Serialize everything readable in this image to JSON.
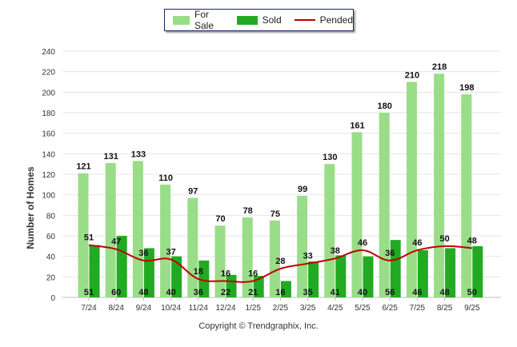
{
  "chart_data": {
    "type": "bar",
    "categories": [
      "7/24",
      "8/24",
      "9/24",
      "10/24",
      "11/24",
      "12/24",
      "1/25",
      "2/25",
      "3/25",
      "4/25",
      "5/25",
      "6/25",
      "7/25",
      "8/25",
      "9/25"
    ],
    "series": [
      {
        "name": "For Sale",
        "type": "bar",
        "color": "#99dd88",
        "values": [
          121,
          131,
          133,
          110,
          97,
          70,
          78,
          75,
          99,
          130,
          161,
          180,
          210,
          218,
          198
        ]
      },
      {
        "name": "Sold",
        "type": "bar",
        "color": "#22aa22",
        "values": [
          51,
          60,
          48,
          40,
          36,
          22,
          21,
          16,
          35,
          41,
          40,
          56,
          46,
          48,
          50
        ]
      },
      {
        "name": "Pended",
        "type": "line",
        "color": "#c00000",
        "values": [
          51,
          47,
          36,
          37,
          18,
          16,
          16,
          28,
          33,
          38,
          46,
          36,
          46,
          50,
          48
        ]
      }
    ],
    "ylabel": "Number of Homes",
    "xlabel": "",
    "ylim": [
      0,
      240
    ],
    "yticks": [
      0,
      20,
      40,
      60,
      80,
      100,
      120,
      140,
      160,
      180,
      200,
      220,
      240
    ],
    "grid": true,
    "legend_position": "top-center"
  },
  "legend": {
    "for_sale": "For Sale",
    "sold": "Sold",
    "pended": "Pended"
  },
  "footer": "Copyright © Trendgraphix, Inc."
}
